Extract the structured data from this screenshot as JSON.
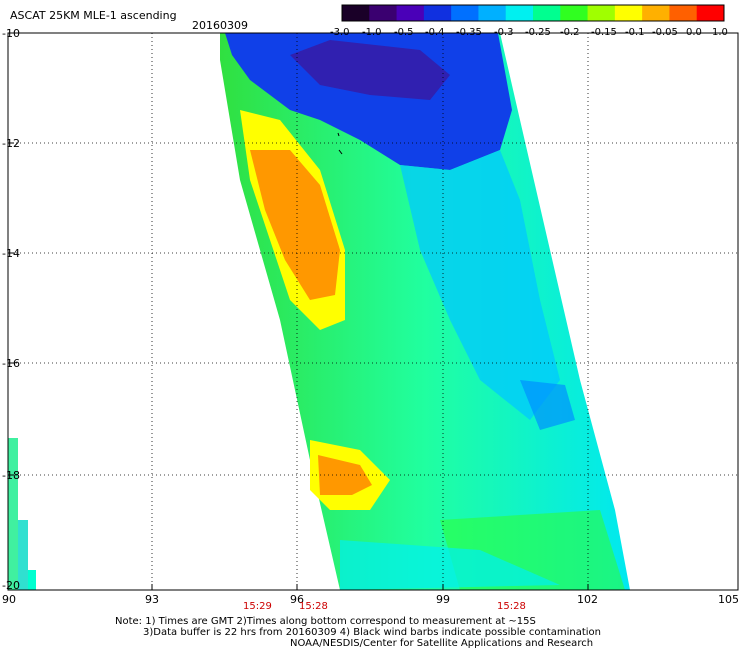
{
  "header": {
    "title": "ASCAT 25KM MLE-1 ascending",
    "date": "20160309"
  },
  "colorbar": {
    "ticks": [
      "-3.0",
      "-1.0",
      "-0.5",
      "-0.4",
      "-0.35",
      "-0.3",
      "-0.25",
      "-0.2",
      "-0.15",
      "-0.1",
      "-0.05",
      "0.0",
      "1.0"
    ],
    "colors": [
      "#1a0028",
      "#3a0070",
      "#4a00b8",
      "#1030e0",
      "#0070ff",
      "#00b0ff",
      "#00f0f0",
      "#00ff90",
      "#30ff20",
      "#a0ff00",
      "#ffff00",
      "#ffb000",
      "#ff6000",
      "#ff0000"
    ]
  },
  "axes": {
    "y_ticks": [
      "-10",
      "-12",
      "-14",
      "-16",
      "-18",
      "-20"
    ],
    "x_ticks": [
      "90",
      "93",
      "96",
      "99",
      "102",
      "105"
    ],
    "times": [
      "15:29",
      "15:28",
      "15:28"
    ]
  },
  "notes": {
    "line1": "Note: 1) Times are GMT 2)Times along bottom correspond to measurement at ~15S",
    "line2": "3)Data buffer is 22 hrs from 20160309 4) Black wind barbs indicate possible contamination",
    "line3": "NOAA/NESDIS/Center for Satellite Applications and Research"
  }
}
